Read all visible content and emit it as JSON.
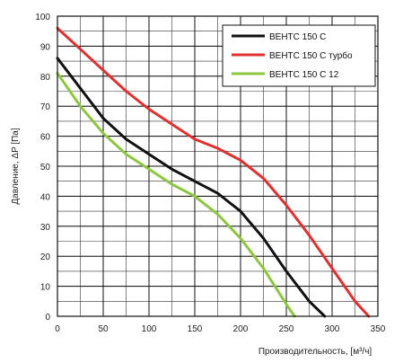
{
  "chart_data": {
    "type": "line",
    "xlabel": "Производительность, [м³/ч]",
    "ylabel": "Давление, ΔP [Па]",
    "xlim": [
      0,
      350
    ],
    "ylim": [
      0,
      100
    ],
    "x_ticks": [
      0,
      50,
      100,
      150,
      200,
      250,
      300,
      350
    ],
    "y_ticks": [
      0,
      10,
      20,
      30,
      40,
      50,
      60,
      70,
      80,
      90,
      100
    ],
    "x_minor_step": 25,
    "y_minor_step": 5,
    "grid": true,
    "legend_position": "top-right",
    "series": [
      {
        "name": "ВЕНТС 150 С",
        "color": "#111111",
        "x": [
          0,
          25,
          50,
          75,
          100,
          125,
          150,
          175,
          200,
          225,
          250,
          275,
          292
        ],
        "y": [
          86,
          76,
          66,
          59,
          54,
          49,
          45,
          41,
          35,
          26,
          15,
          5,
          0
        ]
      },
      {
        "name": "ВЕНТС 150 С турбо",
        "color": "#e03030",
        "x": [
          0,
          25,
          50,
          75,
          100,
          125,
          150,
          175,
          200,
          225,
          250,
          275,
          300,
          325,
          340
        ],
        "y": [
          96,
          89,
          82,
          75,
          69,
          64,
          59,
          56,
          52,
          46,
          37,
          27,
          16,
          5,
          0
        ]
      },
      {
        "name": "ВЕНТС 150 С 12",
        "color": "#8dc63f",
        "x": [
          0,
          25,
          50,
          75,
          100,
          125,
          150,
          175,
          200,
          225,
          250,
          259
        ],
        "y": [
          81,
          70,
          61,
          54,
          49,
          44,
          40,
          34,
          26,
          16,
          4,
          0
        ]
      }
    ]
  }
}
